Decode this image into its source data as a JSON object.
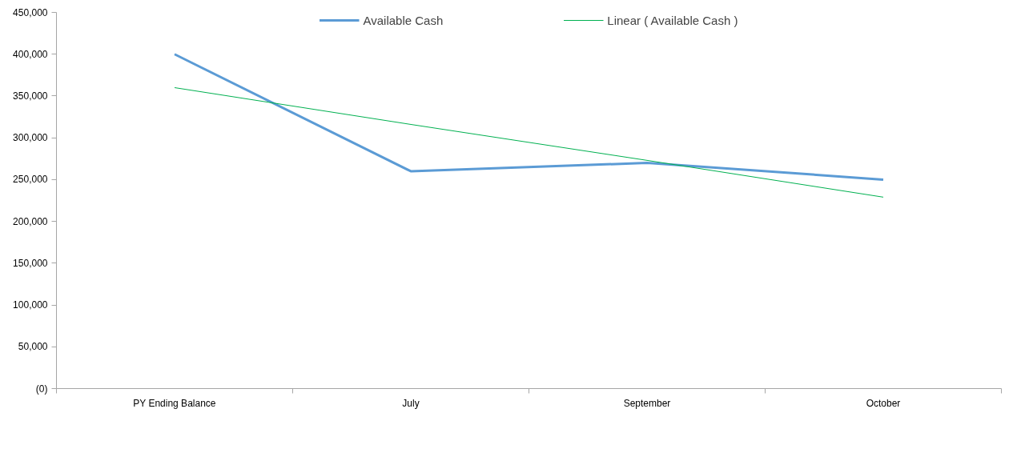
{
  "chart_data": {
    "type": "line",
    "categories": [
      "PY Ending Balance",
      "July",
      "September",
      "October"
    ],
    "series": [
      {
        "name": "Available Cash",
        "color": "#5b9bd5",
        "values": [
          400000,
          260000,
          270000,
          250000
        ]
      },
      {
        "name": "Linear ( Available Cash )",
        "color": "#00b050",
        "values": [
          360000,
          316000,
          273000,
          229000
        ]
      }
    ],
    "ylim": [
      0,
      450000
    ],
    "yticks": [
      {
        "value": 0,
        "label": "(0)"
      },
      {
        "value": 50000,
        "label": "50,000"
      },
      {
        "value": 100000,
        "label": "100,000"
      },
      {
        "value": 150000,
        "label": "150,000"
      },
      {
        "value": 200000,
        "label": "200,000"
      },
      {
        "value": 250000,
        "label": "250,000"
      },
      {
        "value": 300000,
        "label": "300,000"
      },
      {
        "value": 350000,
        "label": "350,000"
      },
      {
        "value": 400000,
        "label": "400,000"
      },
      {
        "value": 450000,
        "label": "450,000"
      }
    ],
    "grid": false,
    "legend": "top",
    "marker": "none",
    "line_style": "solid"
  }
}
